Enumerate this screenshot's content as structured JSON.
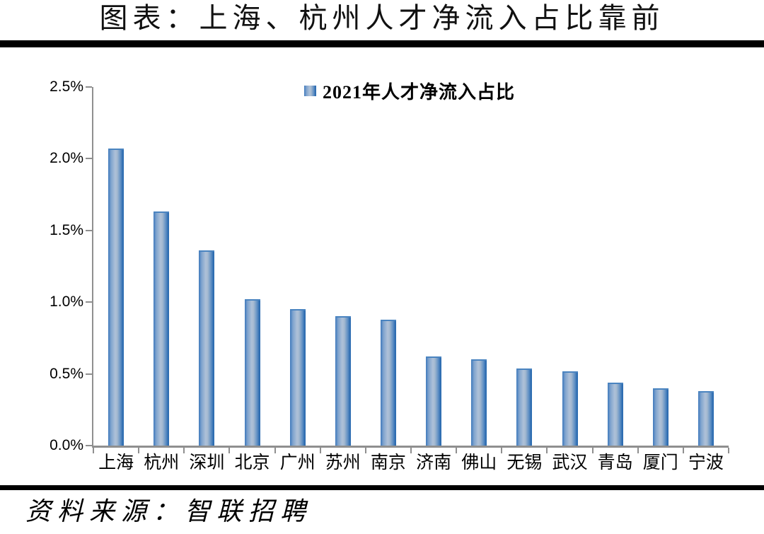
{
  "page": {
    "title": "图表：上海、杭州人才净流入占比靠前",
    "source": "资料来源：智联招聘"
  },
  "legend": {
    "label": "2021年人才净流入占比"
  },
  "colors": {
    "bar_edge": "#2F6FB4",
    "bar_center": "#AEC1D8",
    "axis": "#8F8F8F",
    "divider_rule": "#000000",
    "text": "#000000"
  },
  "chart_data": {
    "type": "bar",
    "title": "图表：上海、杭州人才净流入占比靠前",
    "legend": [
      "2021年人才净流入占比"
    ],
    "legend_position": "top-center",
    "categories": [
      "上海",
      "杭州",
      "深圳",
      "北京",
      "广州",
      "苏州",
      "南京",
      "济南",
      "佛山",
      "无锡",
      "武汉",
      "青岛",
      "厦门",
      "宁波"
    ],
    "values": [
      2.07,
      1.63,
      1.36,
      1.02,
      0.95,
      0.9,
      0.88,
      0.62,
      0.6,
      0.54,
      0.52,
      0.44,
      0.4,
      0.38
    ],
    "unit": "%",
    "xlabel": "",
    "ylabel": "",
    "ylim": [
      0,
      2.5
    ],
    "ytick_step": 0.5,
    "ytick_labels": [
      "0.0%",
      "0.5%",
      "1.0%",
      "1.5%",
      "2.0%",
      "2.5%"
    ],
    "grid": false,
    "source": "资料来源：智联招聘"
  }
}
